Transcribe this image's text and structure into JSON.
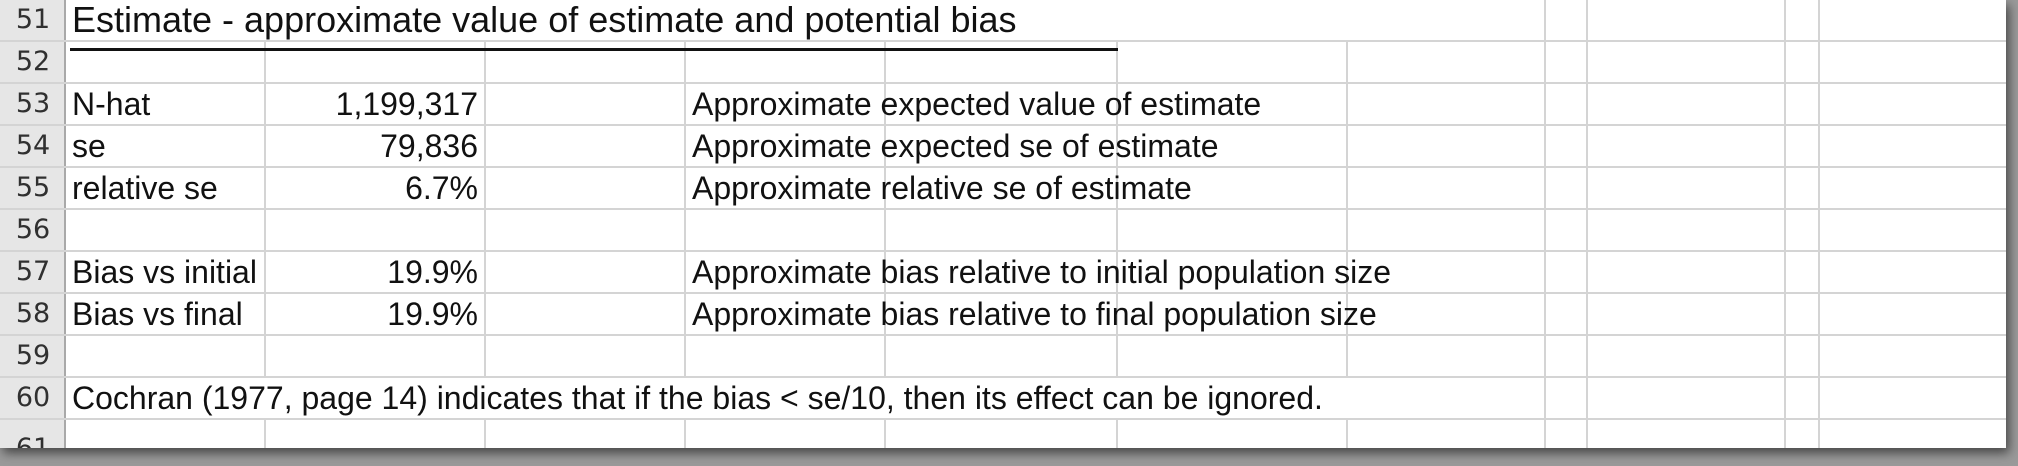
{
  "spreadsheet": {
    "title_row": {
      "number": "51",
      "text": "Estimate - approximate value of estimate and potential bias"
    },
    "rows": [
      {
        "number": "52",
        "label": "",
        "value": "",
        "description": ""
      },
      {
        "number": "53",
        "label": "N-hat",
        "value": "1,199,317",
        "description": "Approximate expected value of estimate"
      },
      {
        "number": "54",
        "label": "se",
        "value": "79,836",
        "description": "Approximate expected se of estimate"
      },
      {
        "number": "55",
        "label": "relative se",
        "value": "6.7%",
        "description": "Approximate relative se of estimate"
      },
      {
        "number": "56",
        "label": "",
        "value": "",
        "description": ""
      },
      {
        "number": "57",
        "label": "Bias vs initial",
        "value": "19.9%",
        "description": "Approximate bias relative to initial population size"
      },
      {
        "number": "58",
        "label": "Bias vs final",
        "value": "19.9%",
        "description": "Approximate bias relative to final population size"
      },
      {
        "number": "59",
        "label": "",
        "value": "",
        "description": ""
      }
    ],
    "note_row": {
      "number": "60",
      "text": "Cochran (1977, page 14) indicates that if the bias < se/10, then its effect can be ignored."
    },
    "partial_row": {
      "number": "61"
    }
  }
}
